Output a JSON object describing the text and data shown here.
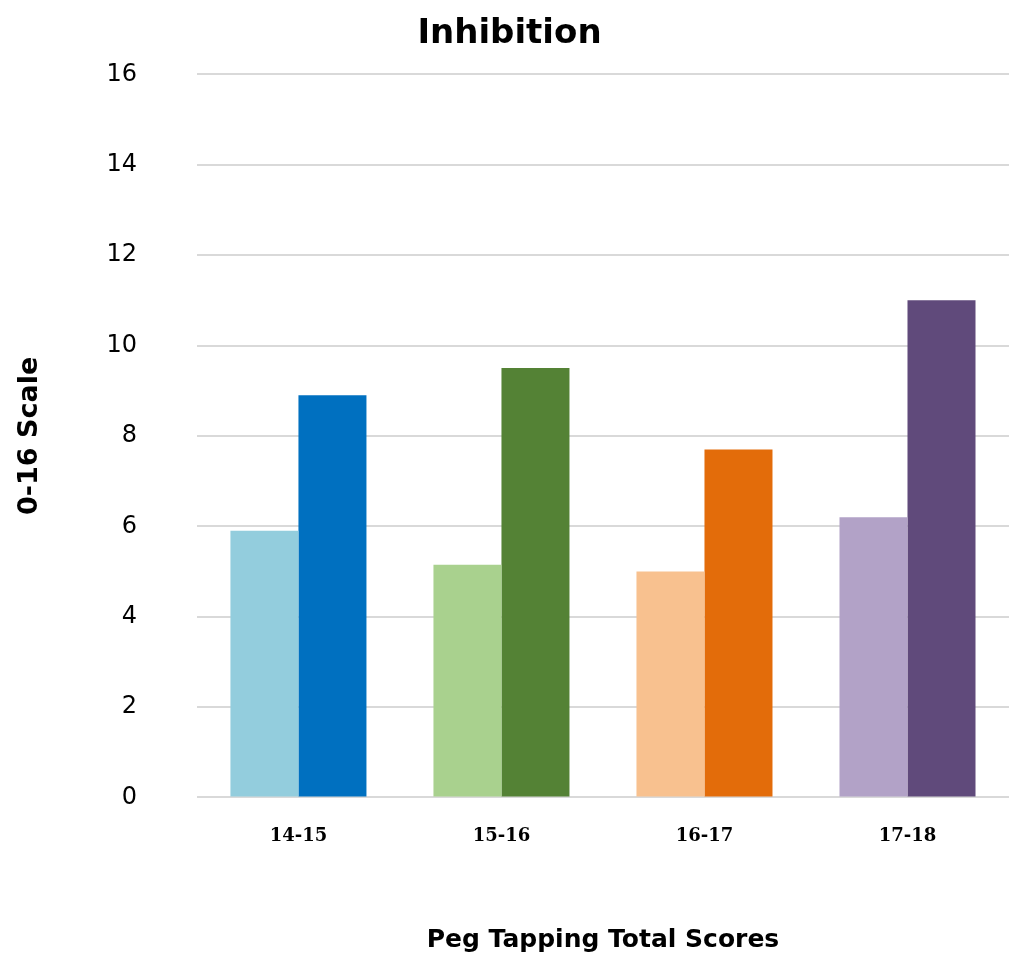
{
  "chart_data": {
    "type": "bar",
    "title": "Inhibition",
    "xlabel": "Peg Tapping Total Scores",
    "ylabel": "0-16 Scale",
    "categories": [
      "14-15",
      "15-16",
      "16-17",
      "17-18"
    ],
    "series": [
      {
        "colors": [
          "#93cddd",
          "#a9d18e",
          "#f8c18f",
          "#b2a2c7"
        ],
        "values": [
          5.9,
          5.15,
          5.0,
          6.2
        ]
      },
      {
        "colors": [
          "#0070c0",
          "#548235",
          "#e36c0a",
          "#604a7b"
        ],
        "values": [
          8.9,
          9.5,
          7.7,
          11.0
        ]
      }
    ],
    "ylim": [
      0,
      16
    ],
    "yticks": [
      0,
      2,
      4,
      6,
      8,
      10,
      12,
      14,
      16
    ],
    "grid": "y",
    "legend": false
  }
}
